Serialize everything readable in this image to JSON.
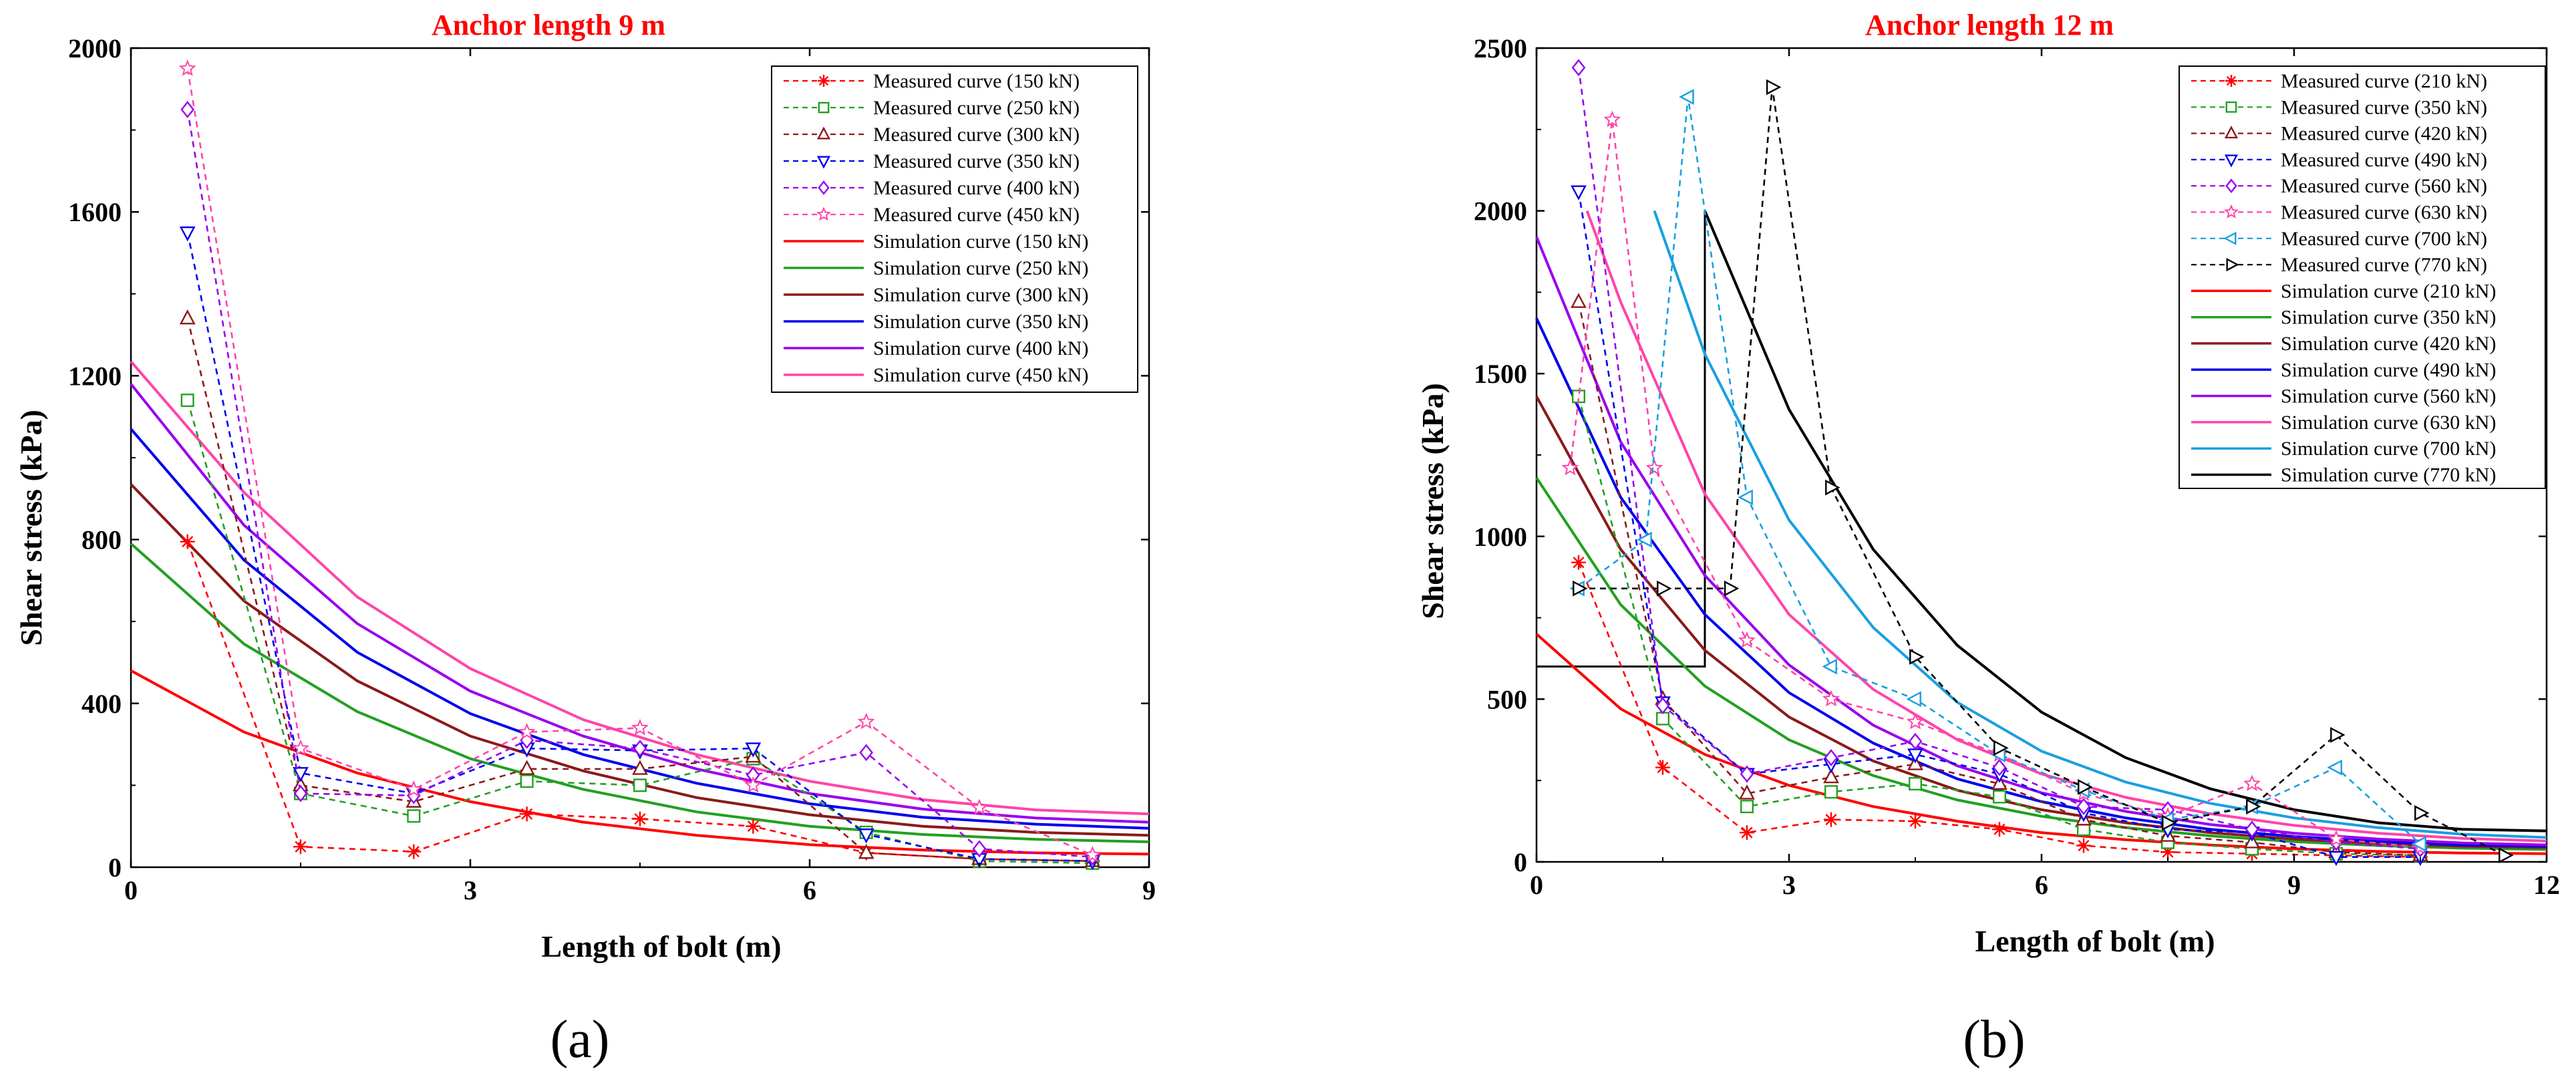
{
  "chart_data": [
    {
      "type": "line",
      "title": "Anchor length 9 m",
      "xlabel": "Length of bolt (m)",
      "ylabel": "Shear stress (kPa)",
      "xlim": [
        0,
        9
      ],
      "ylim": [
        0,
        2000
      ],
      "xticks": [
        "0",
        "3",
        "6",
        "9"
      ],
      "yticks": [
        "0",
        "400",
        "800",
        "1200",
        "1600",
        "2000"
      ],
      "legend_position": "top-right",
      "panel_label": "(a)",
      "series": [
        {
          "name": "Measured curve (150 kN)",
          "kind": "measured",
          "marker": "asterisk",
          "color": "#ff0000",
          "x": [
            0.5,
            1.5,
            2.5,
            3.5,
            4.5,
            5.5,
            6.5,
            7.5,
            8.5
          ],
          "y": [
            795,
            50,
            38,
            130,
            118,
            100,
            35,
            20,
            15
          ]
        },
        {
          "name": "Measured curve (250 kN)",
          "kind": "measured",
          "marker": "square",
          "color": "#22a022",
          "x": [
            0.5,
            1.5,
            2.5,
            3.5,
            4.5,
            5.5,
            6.5,
            7.5,
            8.5
          ],
          "y": [
            1140,
            180,
            125,
            210,
            200,
            265,
            85,
            15,
            10
          ]
        },
        {
          "name": "Measured curve (300 kN)",
          "kind": "measured",
          "marker": "triangle-up",
          "color": "#8b1a1a",
          "x": [
            0.5,
            1.5,
            2.5,
            3.5,
            4.5,
            5.5,
            6.5,
            7.5,
            8.5
          ],
          "y": [
            1340,
            200,
            160,
            240,
            240,
            270,
            35,
            20,
            15
          ]
        },
        {
          "name": "Measured curve (350 kN)",
          "kind": "measured",
          "marker": "triangle-down",
          "color": "#0000ee",
          "x": [
            0.5,
            1.5,
            2.5,
            3.5,
            4.5,
            5.5,
            6.5,
            7.5,
            8.5
          ],
          "y": [
            1550,
            230,
            180,
            290,
            285,
            290,
            80,
            20,
            15
          ]
        },
        {
          "name": "Measured curve (400 kN)",
          "kind": "measured",
          "marker": "diamond",
          "color": "#9900ee",
          "x": [
            0.5,
            1.5,
            2.5,
            3.5,
            4.5,
            5.5,
            6.5,
            7.5,
            8.5
          ],
          "y": [
            1850,
            180,
            175,
            310,
            290,
            225,
            280,
            45,
            25
          ]
        },
        {
          "name": "Measured curve (450 kN)",
          "kind": "measured",
          "marker": "star",
          "color": "#ff44aa",
          "x": [
            0.5,
            1.5,
            2.5,
            3.5,
            4.5,
            5.5,
            6.5,
            7.5,
            8.5
          ],
          "y": [
            1950,
            290,
            190,
            330,
            340,
            200,
            355,
            145,
            30
          ]
        },
        {
          "name": "Simulation curve (150 kN)",
          "kind": "simulation",
          "color": "#ff0000",
          "x": [
            0,
            1,
            2,
            3,
            4,
            5,
            6,
            7,
            8,
            9
          ],
          "y": [
            480,
            330,
            230,
            160,
            110,
            78,
            55,
            42,
            35,
            32
          ]
        },
        {
          "name": "Simulation curve (250 kN)",
          "kind": "simulation",
          "color": "#22a022",
          "x": [
            0,
            1,
            2,
            3,
            4,
            5,
            6,
            7,
            8,
            9
          ],
          "y": [
            790,
            545,
            380,
            265,
            190,
            135,
            100,
            80,
            68,
            62
          ]
        },
        {
          "name": "Simulation curve (300 kN)",
          "kind": "simulation",
          "color": "#8b1a1a",
          "x": [
            0,
            1,
            2,
            3,
            4,
            5,
            6,
            7,
            8,
            9
          ],
          "y": [
            935,
            650,
            455,
            320,
            235,
            170,
            128,
            100,
            85,
            78
          ]
        },
        {
          "name": "Simulation curve (350 kN)",
          "kind": "simulation",
          "color": "#0000ee",
          "x": [
            0,
            1,
            2,
            3,
            4,
            5,
            6,
            7,
            8,
            9
          ],
          "y": [
            1070,
            750,
            525,
            375,
            275,
            205,
            155,
            122,
            105,
            95
          ]
        },
        {
          "name": "Simulation curve (400 kN)",
          "kind": "simulation",
          "color": "#9900ee",
          "x": [
            0,
            1,
            2,
            3,
            4,
            5,
            6,
            7,
            8,
            9
          ],
          "y": [
            1180,
            835,
            595,
            430,
            320,
            240,
            180,
            142,
            120,
            110
          ]
        },
        {
          "name": "Simulation curve (450 kN)",
          "kind": "simulation",
          "color": "#ff44aa",
          "x": [
            0,
            1,
            2,
            3,
            4,
            5,
            6,
            7,
            8,
            9
          ],
          "y": [
            1235,
            915,
            660,
            485,
            360,
            275,
            210,
            165,
            140,
            130
          ]
        }
      ]
    },
    {
      "type": "line",
      "title": "Anchor length 12 m",
      "xlabel": "Length of bolt (m)",
      "ylabel": "Shear stress (kPa)",
      "xlim": [
        0,
        12
      ],
      "ylim": [
        0,
        2500
      ],
      "xticks": [
        "0",
        "3",
        "6",
        "9",
        "12"
      ],
      "yticks": [
        "0",
        "500",
        "1000",
        "1500",
        "2000",
        "2500"
      ],
      "legend_position": "top-right",
      "panel_label": "(b)",
      "series": [
        {
          "name": "Measured curve (210 kN)",
          "kind": "measured",
          "marker": "asterisk",
          "color": "#ff0000",
          "x": [
            0.5,
            1.5,
            2.5,
            3.5,
            4.5,
            5.5,
            6.5,
            7.5,
            8.5,
            9.5,
            10.5
          ],
          "y": [
            920,
            290,
            90,
            130,
            125,
            100,
            50,
            30,
            25,
            20,
            15
          ]
        },
        {
          "name": "Measured curve (350 kN)",
          "kind": "measured",
          "marker": "square",
          "color": "#22a022",
          "x": [
            0.5,
            1.5,
            2.5,
            3.5,
            4.5,
            5.5,
            6.5,
            7.5,
            8.5,
            9.5,
            10.5
          ],
          "y": [
            1430,
            440,
            170,
            215,
            240,
            200,
            100,
            60,
            40,
            25,
            20
          ]
        },
        {
          "name": "Measured curve (420 kN)",
          "kind": "measured",
          "marker": "triangle-up",
          "color": "#8b1a1a",
          "x": [
            0.5,
            1.5,
            2.5,
            3.5,
            4.5,
            5.5,
            6.5,
            7.5,
            8.5,
            9.5,
            10.5
          ],
          "y": [
            1720,
            500,
            210,
            260,
            300,
            240,
            130,
            80,
            60,
            30,
            20
          ]
        },
        {
          "name": "Measured curve (490 kN)",
          "kind": "measured",
          "marker": "triangle-down",
          "color": "#0000ee",
          "x": [
            0.5,
            1.5,
            2.5,
            3.5,
            4.5,
            5.5,
            6.5,
            7.5,
            8.5,
            9.5,
            10.5
          ],
          "y": [
            2060,
            490,
            270,
            300,
            330,
            270,
            150,
            100,
            90,
            15,
            15
          ]
        },
        {
          "name": "Measured curve (560 kN)",
          "kind": "measured",
          "marker": "diamond",
          "color": "#9900ee",
          "x": [
            0.5,
            1.5,
            2.5,
            3.5,
            4.5,
            5.5,
            6.5,
            7.5,
            8.5,
            9.5,
            10.5
          ],
          "y": [
            2440,
            480,
            270,
            320,
            370,
            290,
            170,
            160,
            100,
            60,
            40
          ]
        },
        {
          "name": "Measured curve (630 kN)",
          "kind": "measured",
          "marker": "star",
          "color": "#ff44aa",
          "x": [
            0.4,
            0.9,
            1.4,
            2.5,
            3.5,
            4.5,
            5.5,
            6.5,
            7.5,
            8.5,
            9.5,
            10.5
          ],
          "y": [
            1210,
            2280,
            1210,
            680,
            500,
            430,
            330,
            210,
            140,
            240,
            70,
            45
          ]
        },
        {
          "name": "Measured curve (700 kN)",
          "kind": "measured",
          "marker": "triangle-left",
          "color": "#1a9fe0",
          "x": [
            0.5,
            1.3,
            1.8,
            2.5,
            3.5,
            4.5,
            5.5,
            6.5,
            7.5,
            8.5,
            9.5,
            10.5
          ],
          "y": [
            840,
            990,
            2350,
            1120,
            600,
            500,
            330,
            220,
            130,
            170,
            290,
            55
          ]
        },
        {
          "name": "Measured curve (770 kN)",
          "kind": "measured",
          "marker": "triangle-right",
          "color": "#000000",
          "x": [
            0.5,
            1.5,
            2.3,
            2.8,
            3.5,
            4.5,
            5.5,
            6.5,
            7.5,
            8.5,
            9.5,
            10.5,
            11.5
          ],
          "y": [
            840,
            840,
            840,
            2380,
            1150,
            630,
            350,
            230,
            120,
            170,
            390,
            150,
            20
          ]
        },
        {
          "name": "Simulation curve (210 kN)",
          "kind": "simulation",
          "color": "#ff0000",
          "x": [
            0,
            1,
            2,
            3,
            4,
            5,
            6,
            7,
            8,
            9,
            10,
            11,
            12
          ],
          "y": [
            700,
            470,
            330,
            235,
            170,
            125,
            90,
            68,
            52,
            40,
            32,
            27,
            25
          ]
        },
        {
          "name": "Simulation curve (350 kN)",
          "kind": "simulation",
          "color": "#22a022",
          "x": [
            0,
            1,
            2,
            3,
            4,
            5,
            6,
            7,
            8,
            9,
            10,
            11,
            12
          ],
          "y": [
            1180,
            790,
            540,
            375,
            265,
            190,
            140,
            105,
            80,
            62,
            50,
            42,
            38
          ]
        },
        {
          "name": "Simulation curve (420 kN)",
          "kind": "simulation",
          "color": "#8b1a1a",
          "x": [
            0,
            1,
            2,
            3,
            4,
            5,
            6,
            7,
            8,
            9,
            10,
            11,
            12
          ],
          "y": [
            1430,
            960,
            650,
            445,
            310,
            220,
            160,
            120,
            90,
            70,
            56,
            48,
            44
          ]
        },
        {
          "name": "Simulation curve (490 kN)",
          "kind": "simulation",
          "color": "#0000ee",
          "x": [
            0,
            1,
            2,
            3,
            4,
            5,
            6,
            7,
            8,
            9,
            10,
            11,
            12
          ],
          "y": [
            1670,
            1120,
            760,
            520,
            365,
            255,
            185,
            135,
            100,
            78,
            62,
            52,
            48
          ]
        },
        {
          "name": "Simulation curve (560 kN)",
          "kind": "simulation",
          "color": "#9900ee",
          "x": [
            0,
            1,
            2,
            3,
            4,
            5,
            6,
            7,
            8,
            9,
            10,
            11,
            12
          ],
          "y": [
            1920,
            1290,
            880,
            605,
            420,
            295,
            212,
            155,
            115,
            88,
            70,
            58,
            52
          ]
        },
        {
          "name": "Simulation curve (630 kN)",
          "kind": "simulation",
          "color": "#ff44aa",
          "x": [
            0.6,
            1,
            2,
            3,
            4,
            5,
            6,
            7,
            8,
            9,
            10,
            11,
            12
          ],
          "y": [
            2000,
            1720,
            1130,
            760,
            530,
            375,
            270,
            198,
            148,
            112,
            88,
            72,
            64
          ]
        },
        {
          "name": "Simulation curve (700 kN)",
          "kind": "simulation",
          "color": "#1a9fe0",
          "x": [
            1.4,
            2,
            3,
            4,
            5,
            6,
            7,
            8,
            9,
            10,
            11,
            12
          ],
          "y": [
            2000,
            1560,
            1050,
            720,
            490,
            340,
            245,
            180,
            135,
            105,
            85,
            75
          ]
        },
        {
          "name": "Simulation curve (770 kN)",
          "kind": "simulation",
          "color": "#000000",
          "x": [
            2,
            3,
            4,
            5,
            6,
            7,
            8,
            9,
            10,
            11,
            12
          ],
          "y": [
            2000,
            1390,
            960,
            665,
            460,
            320,
            225,
            160,
            120,
            100,
            95
          ]
        }
      ]
    }
  ]
}
